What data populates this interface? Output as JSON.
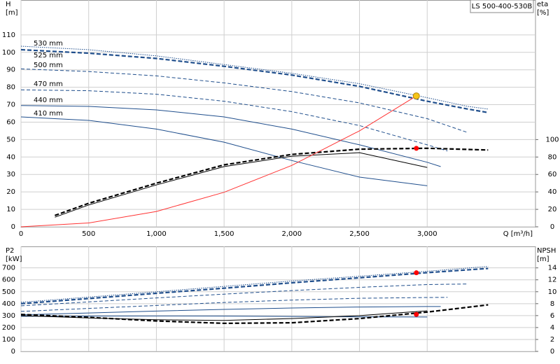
{
  "chart_data": [
    {
      "type": "line",
      "title": "LS 500-400-530B",
      "ylabel": [
        "H",
        "[m]"
      ],
      "y2label": [
        "eta",
        "[%]"
      ],
      "xlabel": "Q [m³/h]",
      "xlim": [
        0,
        3800
      ],
      "ylim": [
        0,
        130
      ],
      "y2lim": [
        0,
        260
      ],
      "grid": true,
      "xticks": [
        0,
        500,
        {
          "value": 1000,
          "label": "1,000"
        },
        {
          "value": 1500,
          "label": "1,500"
        },
        {
          "value": 2000,
          "label": "2,000"
        },
        {
          "value": 2500,
          "label": "2,500"
        },
        {
          "value": 3000,
          "label": "3,000"
        }
      ],
      "yticks": [
        0,
        10,
        20,
        30,
        40,
        50,
        60,
        70,
        80,
        90,
        100,
        110
      ],
      "y2ticks": [
        0,
        20,
        40,
        60,
        80,
        100
      ],
      "series": [
        {
          "name": "530 mm",
          "color": "#1f4e8c",
          "style": "dotted",
          "x": [
            0,
            500,
            1000,
            1500,
            2000,
            2500,
            3000,
            3300,
            3450
          ],
          "values": [
            103.5,
            101.5,
            98,
            93,
            88,
            82,
            74,
            69,
            67.5
          ]
        },
        {
          "name": "525 mm",
          "color": "#1f4e8c",
          "style": "thick-dashed",
          "x": [
            0,
            500,
            1000,
            1500,
            2000,
            2500,
            3000,
            3300,
            3450
          ],
          "values": [
            101.5,
            99.5,
            96.5,
            92,
            87,
            80.5,
            72,
            67.5,
            65.5
          ]
        },
        {
          "name": "500 mm",
          "color": "#1f4e8c",
          "style": "dashed",
          "x": [
            0,
            500,
            1000,
            1500,
            2000,
            2500,
            3000,
            3300
          ],
          "values": [
            90.5,
            89,
            86.5,
            82.5,
            77.5,
            71,
            62,
            54
          ]
        },
        {
          "name": "470 mm",
          "color": "#1f4e8c",
          "style": "dashed",
          "x": [
            0,
            500,
            1000,
            1500,
            2000,
            2500,
            3000,
            3150
          ],
          "values": [
            78.5,
            78,
            76,
            72,
            66,
            58,
            47,
            43.5
          ]
        },
        {
          "name": "440 mm",
          "color": "#1f4e8c",
          "style": "solid",
          "x": [
            0,
            500,
            1000,
            1500,
            2000,
            2500,
            3000,
            3100
          ],
          "values": [
            69.5,
            69,
            67,
            63,
            56,
            47,
            37,
            34.5
          ]
        },
        {
          "name": "410 mm",
          "color": "#1f4e8c",
          "style": "solid",
          "x": [
            0,
            500,
            1000,
            1500,
            2000,
            2500,
            3000
          ],
          "values": [
            63,
            61,
            56,
            48.5,
            38,
            28.5,
            23.5
          ]
        },
        {
          "color": "#000000",
          "style": "thick-dashed",
          "axis": "y2",
          "x": [
            250,
            500,
            1000,
            1500,
            2000,
            2500,
            3000,
            3450
          ],
          "values": [
            13,
            27,
            50,
            71,
            83,
            89,
            90,
            88
          ]
        },
        {
          "color": "#000000",
          "style": "solid",
          "axis": "y2",
          "x": [
            250,
            500,
            1000,
            1500,
            2000,
            2500,
            3000
          ],
          "values": [
            11,
            25,
            48,
            69,
            81,
            85,
            68
          ]
        },
        {
          "color": "#ff3333",
          "style": "solid",
          "x": [
            0,
            500,
            1000,
            1500,
            2000,
            2500,
            2920
          ],
          "values": [
            0,
            2.2,
            8.8,
            19.8,
            35.2,
            55,
            75
          ]
        }
      ],
      "markers": [
        {
          "x": 2920,
          "y": 75,
          "color": "#f5c518"
        },
        {
          "x": 2920,
          "y": 90,
          "axis": "y2",
          "color": "#ff0000"
        }
      ]
    },
    {
      "type": "line",
      "ylabel": [
        "P2",
        "[kW]"
      ],
      "y2label": [
        "NPSH",
        "[m]"
      ],
      "xlim": [
        0,
        3800
      ],
      "ylim": [
        0,
        880
      ],
      "y2lim": [
        0,
        17.6
      ],
      "grid": true,
      "xtick_labels": false,
      "xticks": [
        0,
        500,
        1000,
        1500,
        2000,
        2500,
        3000
      ],
      "yticks": [
        0,
        100,
        200,
        300,
        400,
        500,
        600,
        700
      ],
      "y2ticks": [
        0,
        2,
        4,
        6,
        8,
        10,
        12,
        14
      ],
      "series": [
        {
          "color": "#1f4e8c",
          "style": "dotted",
          "x": [
            0,
            500,
            1000,
            1500,
            2000,
            2500,
            3000,
            3450
          ],
          "values": [
            412,
            455,
            500,
            545,
            590,
            630,
            672,
            712
          ]
        },
        {
          "color": "#1f4e8c",
          "style": "thick-dashed",
          "x": [
            0,
            500,
            1000,
            1500,
            2000,
            2500,
            3000,
            3450
          ],
          "values": [
            400,
            443,
            487,
            530,
            575,
            617,
            660,
            695
          ]
        },
        {
          "color": "#1f4e8c",
          "style": "dashed",
          "x": [
            0,
            500,
            1000,
            1500,
            2000,
            2500,
            3000,
            3300
          ],
          "values": [
            382,
            415,
            448,
            480,
            510,
            537,
            560,
            565
          ]
        },
        {
          "color": "#1f4e8c",
          "style": "dashed",
          "x": [
            0,
            500,
            1000,
            1500,
            2000,
            2500,
            3000,
            3150
          ],
          "values": [
            335,
            360,
            385,
            410,
            430,
            445,
            452,
            453
          ]
        },
        {
          "color": "#1f4e8c",
          "style": "solid",
          "x": [
            0,
            500,
            1000,
            1500,
            2000,
            2500,
            3000,
            3100
          ],
          "values": [
            306,
            322,
            338,
            352,
            364,
            372,
            376,
            376
          ]
        },
        {
          "color": "#1f4e8c",
          "style": "solid",
          "x": [
            0,
            500,
            1000,
            1500,
            2000,
            2500,
            3000
          ],
          "values": [
            294,
            296,
            297,
            296,
            293,
            290,
            288
          ]
        },
        {
          "color": "#000000",
          "style": "thick-dashed",
          "axis": "y2",
          "x": [
            0,
            500,
            1000,
            1500,
            2000,
            2500,
            3000,
            3450
          ],
          "values": [
            6.2,
            5.7,
            5.1,
            4.7,
            4.8,
            5.5,
            6.6,
            7.8
          ]
        },
        {
          "color": "#000000",
          "style": "solid",
          "axis": "y2",
          "x": [
            0,
            500,
            1000,
            1500,
            2000,
            2500,
            3000
          ],
          "values": [
            6,
            5.6,
            5.3,
            5.2,
            5.5,
            6,
            6.8
          ]
        }
      ],
      "markers": [
        {
          "x": 2920,
          "y": 659,
          "color": "#ff0000"
        },
        {
          "x": 2920,
          "y": 6.2,
          "axis": "y2",
          "color": "#ff0000"
        }
      ]
    }
  ]
}
